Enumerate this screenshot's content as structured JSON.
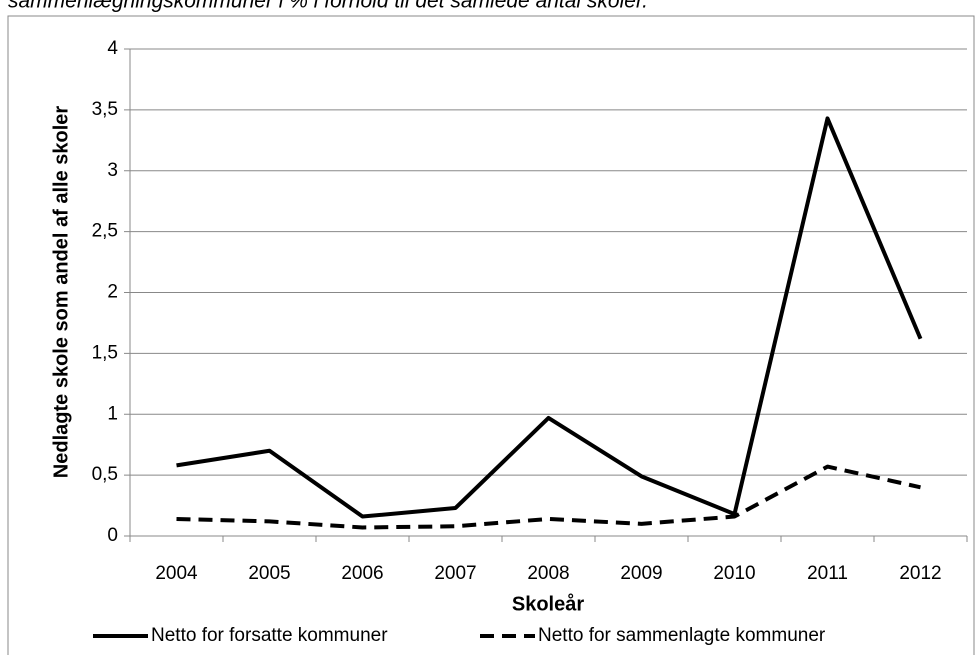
{
  "chart_data": {
    "type": "line",
    "title": "sammenlægningskommuner i % i forhold til det samlede antal skoler.",
    "x_label": "Skoleår",
    "y_label": "Nedlagte skole som  andel af alle  skoler",
    "categories": [
      "2004",
      "2005",
      "2006",
      "2007",
      "2008",
      "2009",
      "2010",
      "2011",
      "2012"
    ],
    "series": [
      {
        "name": "Netto for forsatte kommuner",
        "color": "#000000",
        "line_style": "solid",
        "values": [
          0.58,
          0.7,
          0.16,
          0.23,
          0.97,
          0.49,
          0.18,
          3.43,
          1.62
        ]
      },
      {
        "name": "Netto for sammenlagte kommuner",
        "color": "#000000",
        "line_style": "dashed",
        "values": [
          0.14,
          0.12,
          0.07,
          0.08,
          0.14,
          0.1,
          0.16,
          0.57,
          0.4
        ]
      }
    ],
    "ylim": [
      0,
      4
    ],
    "yticks": [
      0,
      {
        "value": 0.5,
        "label": "0,5"
      },
      1,
      {
        "value": 1.5,
        "label": "1,5"
      },
      2,
      {
        "value": 2.5,
        "label": "2,5"
      },
      3,
      {
        "value": 3.5,
        "label": "3,5"
      },
      4
    ],
    "grid": true,
    "legend": "bottom"
  }
}
